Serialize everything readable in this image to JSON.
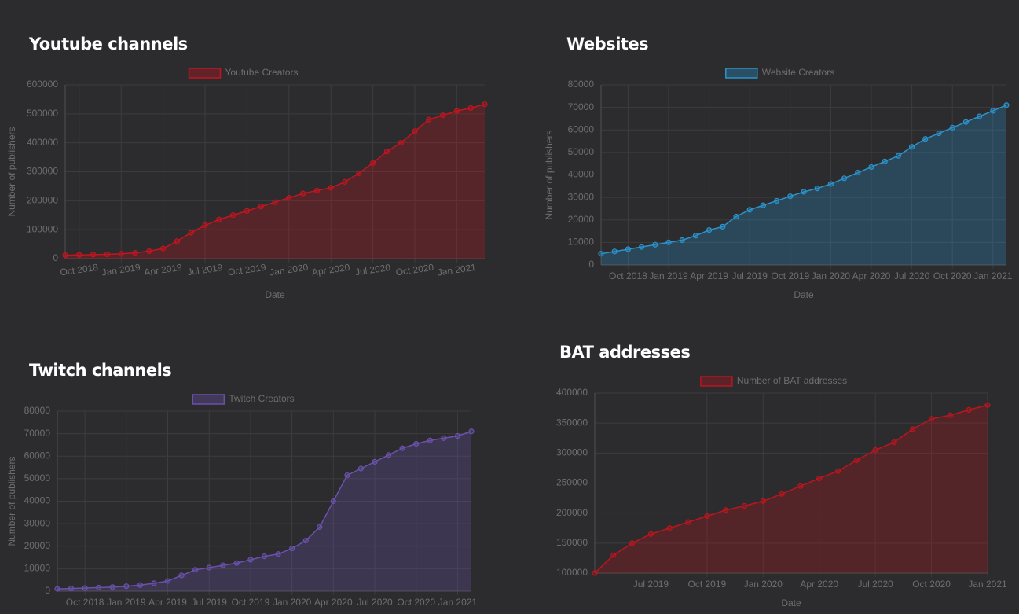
{
  "chart_data": [
    {
      "type": "line",
      "title": "Youtube channels",
      "x_label": "Date",
      "y_label": "Number of publishers",
      "x": [
        "2018-09",
        "2018-10",
        "2018-11",
        "2018-12",
        "2019-01",
        "2019-02",
        "2019-03",
        "2019-04",
        "2019-05",
        "2019-06",
        "2019-07",
        "2019-08",
        "2019-09",
        "2019-10",
        "2019-11",
        "2019-12",
        "2020-01",
        "2020-02",
        "2020-03",
        "2020-04",
        "2020-05",
        "2020-06",
        "2020-07",
        "2020-08",
        "2020-09",
        "2020-10",
        "2020-11",
        "2020-12",
        "2021-01",
        "2021-02",
        "2021-03"
      ],
      "series": [
        {
          "name": "Youtube Creators",
          "color": "#c3151f",
          "values": [
            12000,
            13000,
            14000,
            15000,
            17000,
            20000,
            26000,
            35000,
            60000,
            90000,
            115000,
            135000,
            150000,
            165000,
            180000,
            195000,
            210000,
            225000,
            235000,
            245000,
            265000,
            295000,
            330000,
            370000,
            400000,
            440000,
            480000,
            495000,
            510000,
            520000,
            533000
          ]
        }
      ],
      "xlim": [
        "2018-09",
        "2021-03"
      ],
      "xticks": [
        {
          "value": "2018-10",
          "label": "Oct 2018"
        },
        {
          "value": "2019-01",
          "label": "Jan 2019"
        },
        {
          "value": "2019-04",
          "label": "Apr 2019"
        },
        {
          "value": "2019-07",
          "label": "Jul 2019"
        },
        {
          "value": "2019-10",
          "label": "Oct 2019"
        },
        {
          "value": "2020-01",
          "label": "Jan 2020"
        },
        {
          "value": "2020-04",
          "label": "Apr 2020"
        },
        {
          "value": "2020-07",
          "label": "Jul 2020"
        },
        {
          "value": "2020-10",
          "label": "Oct 2020"
        },
        {
          "value": "2021-01",
          "label": "Jan 2021"
        }
      ],
      "ylim": [
        0,
        600000
      ],
      "yticks": [
        0,
        100000,
        200000,
        300000,
        400000,
        500000,
        600000
      ],
      "grid": true
    },
    {
      "type": "line",
      "title": "Websites",
      "x_label": "Date",
      "y_label": "Number of publishers",
      "x": [
        "2018-08",
        "2018-09",
        "2018-10",
        "2018-11",
        "2018-12",
        "2019-01",
        "2019-02",
        "2019-03",
        "2019-04",
        "2019-05",
        "2019-06",
        "2019-07",
        "2019-08",
        "2019-09",
        "2019-10",
        "2019-11",
        "2019-12",
        "2020-01",
        "2020-02",
        "2020-03",
        "2020-04",
        "2020-05",
        "2020-06",
        "2020-07",
        "2020-08",
        "2020-09",
        "2020-10",
        "2020-11",
        "2020-12",
        "2021-01",
        "2021-02"
      ],
      "series": [
        {
          "name": "Website Creators",
          "color": "#2b93cc",
          "values": [
            5000,
            6000,
            7000,
            8000,
            9000,
            10000,
            11000,
            13000,
            15500,
            17000,
            21500,
            24500,
            26500,
            28500,
            30500,
            32500,
            34000,
            36000,
            38500,
            41000,
            43500,
            46000,
            48500,
            52500,
            56000,
            58500,
            61000,
            63500,
            66000,
            68500,
            71000
          ]
        }
      ],
      "xlim": [
        "2018-08",
        "2021-02"
      ],
      "xticks": [
        {
          "value": "2018-10",
          "label": "Oct 2018"
        },
        {
          "value": "2019-01",
          "label": "Jan 2019"
        },
        {
          "value": "2019-04",
          "label": "Apr 2019"
        },
        {
          "value": "2019-07",
          "label": "Jul 2019"
        },
        {
          "value": "2019-10",
          "label": "Oct 2019"
        },
        {
          "value": "2020-01",
          "label": "Jan 2020"
        },
        {
          "value": "2020-04",
          "label": "Apr 2020"
        },
        {
          "value": "2020-07",
          "label": "Jul 2020"
        },
        {
          "value": "2020-10",
          "label": "Oct 2020"
        },
        {
          "value": "2021-01",
          "label": "Jan 2021"
        }
      ],
      "ylim": [
        0,
        80000
      ],
      "yticks": [
        0,
        10000,
        20000,
        30000,
        40000,
        50000,
        60000,
        70000,
        80000
      ],
      "grid": true
    },
    {
      "type": "line",
      "title": "Twitch channels",
      "y_label": "Number of publishers",
      "x": [
        "2018-08",
        "2018-09",
        "2018-10",
        "2018-11",
        "2018-12",
        "2019-01",
        "2019-02",
        "2019-03",
        "2019-04",
        "2019-05",
        "2019-06",
        "2019-07",
        "2019-08",
        "2019-09",
        "2019-10",
        "2019-11",
        "2019-12",
        "2020-01",
        "2020-02",
        "2020-03",
        "2020-04",
        "2020-05",
        "2020-06",
        "2020-07",
        "2020-08",
        "2020-09",
        "2020-10",
        "2020-11",
        "2020-12",
        "2021-01",
        "2021-02"
      ],
      "series": [
        {
          "name": "Twitch Creators",
          "color": "#6b51ab",
          "values": [
            1000,
            1200,
            1400,
            1600,
            1800,
            2200,
            2700,
            3500,
            4500,
            7000,
            9500,
            10500,
            11500,
            12500,
            14000,
            15500,
            16500,
            19000,
            22500,
            28500,
            40000,
            51500,
            54500,
            57500,
            60500,
            63500,
            65500,
            67000,
            68000,
            69000,
            71000
          ]
        }
      ],
      "xlim": [
        "2018-08",
        "2021-02"
      ],
      "xticks": [
        {
          "value": "2018-10",
          "label": "Oct 2018"
        },
        {
          "value": "2019-01",
          "label": "Jan 2019"
        },
        {
          "value": "2019-04",
          "label": "Apr 2019"
        },
        {
          "value": "2019-07",
          "label": "Jul 2019"
        },
        {
          "value": "2019-10",
          "label": "Oct 2019"
        },
        {
          "value": "2020-01",
          "label": "Jan 2020"
        },
        {
          "value": "2020-04",
          "label": "Apr 2020"
        },
        {
          "value": "2020-07",
          "label": "Jul 2020"
        },
        {
          "value": "2020-10",
          "label": "Oct 2020"
        },
        {
          "value": "2021-01",
          "label": "Jan 2021"
        }
      ],
      "ylim": [
        0,
        80000
      ],
      "yticks": [
        0,
        10000,
        20000,
        30000,
        40000,
        50000,
        60000,
        70000,
        80000
      ],
      "grid": true
    },
    {
      "type": "line",
      "title": "BAT addresses",
      "x_label": "Date",
      "x": [
        "2019-04",
        "2019-05",
        "2019-06",
        "2019-07",
        "2019-08",
        "2019-09",
        "2019-10",
        "2019-11",
        "2019-12",
        "2020-01",
        "2020-02",
        "2020-03",
        "2020-04",
        "2020-05",
        "2020-06",
        "2020-07",
        "2020-08",
        "2020-09",
        "2020-10",
        "2020-11",
        "2020-12",
        "2021-01"
      ],
      "series": [
        {
          "name": "Number of BAT addresses",
          "color": "#bb151e",
          "values": [
            100000,
            130000,
            150000,
            165000,
            175000,
            185000,
            195000,
            205000,
            212000,
            220000,
            232000,
            245000,
            258000,
            270000,
            288000,
            305000,
            318000,
            340000,
            357000,
            363000,
            372000,
            380000
          ]
        }
      ],
      "xlim": [
        "2019-04",
        "2021-01"
      ],
      "xticks": [
        {
          "value": "2019-07",
          "label": "Jul 2019"
        },
        {
          "value": "2019-10",
          "label": "Oct 2019"
        },
        {
          "value": "2020-01",
          "label": "Jan 2020"
        },
        {
          "value": "2020-04",
          "label": "Apr 2020"
        },
        {
          "value": "2020-07",
          "label": "Jul 2020"
        },
        {
          "value": "2020-10",
          "label": "Oct 2020"
        },
        {
          "value": "2021-01",
          "label": "Jan 2021"
        }
      ],
      "ylim": [
        100000,
        400000
      ],
      "yticks": [
        100000,
        150000,
        200000,
        250000,
        300000,
        350000,
        400000
      ],
      "grid": true
    }
  ]
}
